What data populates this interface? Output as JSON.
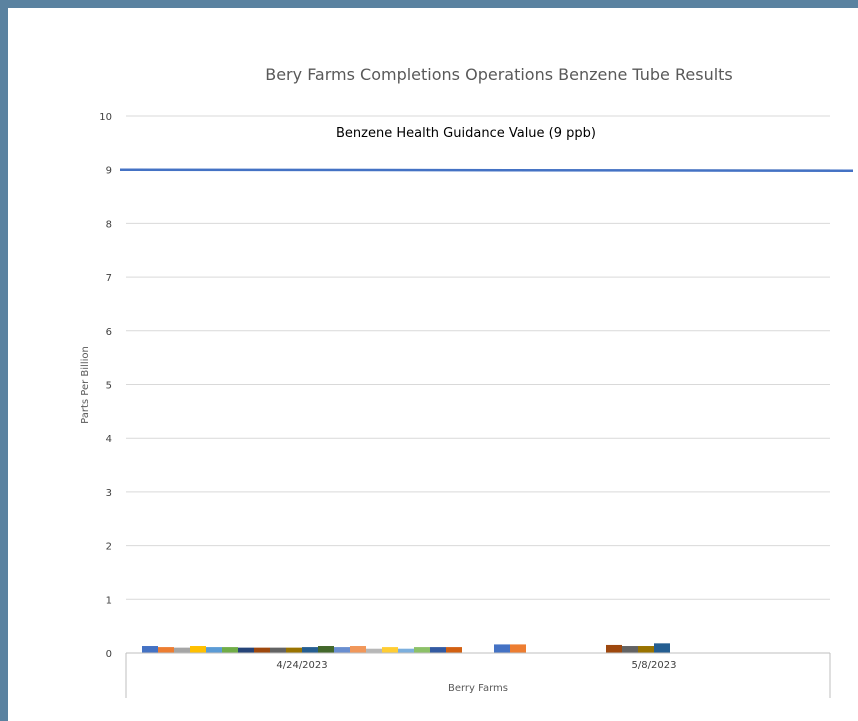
{
  "chart_data": {
    "type": "bar",
    "title": "Bery Farms Completions Operations Benzene Tube Results",
    "xlabel": "Berry Farms",
    "ylabel": "Parts Per Billion",
    "ylim": [
      0,
      10
    ],
    "yticks": [
      0,
      1,
      2,
      3,
      4,
      5,
      6,
      7,
      8,
      9,
      10
    ],
    "grid": true,
    "categories": [
      "4/24/2023",
      "5/8/2023"
    ],
    "groups": [
      {
        "category": "4/24/2023",
        "bars": [
          {
            "value": 0.13,
            "color": "#4472c4"
          },
          {
            "value": 0.11,
            "color": "#ed7d31"
          },
          {
            "value": 0.1,
            "color": "#a5a5a5"
          },
          {
            "value": 0.13,
            "color": "#ffc000"
          },
          {
            "value": 0.11,
            "color": "#5b9bd5"
          },
          {
            "value": 0.11,
            "color": "#70ad47"
          },
          {
            "value": 0.1,
            "color": "#264478"
          },
          {
            "value": 0.1,
            "color": "#9e480e"
          },
          {
            "value": 0.1,
            "color": "#636363"
          },
          {
            "value": 0.1,
            "color": "#997300"
          },
          {
            "value": 0.11,
            "color": "#255e91"
          },
          {
            "value": 0.13,
            "color": "#43682b"
          },
          {
            "value": 0.11,
            "color": "#698ed0"
          },
          {
            "value": 0.13,
            "color": "#f1975a"
          },
          {
            "value": 0.08,
            "color": "#b7b7b7"
          },
          {
            "value": 0.11,
            "color": "#ffcd33"
          },
          {
            "value": 0.08,
            "color": "#7cafdd"
          },
          {
            "value": 0.11,
            "color": "#8cc168"
          },
          {
            "value": 0.11,
            "color": "#335aa1"
          },
          {
            "value": 0.11,
            "color": "#d26012"
          }
        ]
      },
      {
        "category": "5/8/2023",
        "bars": [
          {
            "value": 0.16,
            "color": "#4472c4"
          },
          {
            "value": 0.16,
            "color": "#ed7d31"
          },
          {
            "value": 0,
            "color": "#a5a5a5"
          },
          {
            "value": 0,
            "color": "#ffc000"
          },
          {
            "value": 0,
            "color": "#5b9bd5"
          },
          {
            "value": 0,
            "color": "#70ad47"
          },
          {
            "value": 0,
            "color": "#264478"
          },
          {
            "value": 0.15,
            "color": "#9e480e"
          },
          {
            "value": 0.13,
            "color": "#636363"
          },
          {
            "value": 0.13,
            "color": "#997300"
          },
          {
            "value": 0.18,
            "color": "#255e91"
          }
        ]
      }
    ],
    "reference_line": {
      "value": 9,
      "label": "Benzene Health Guidance Value (9 ppb)",
      "color": "#4472c4"
    }
  }
}
